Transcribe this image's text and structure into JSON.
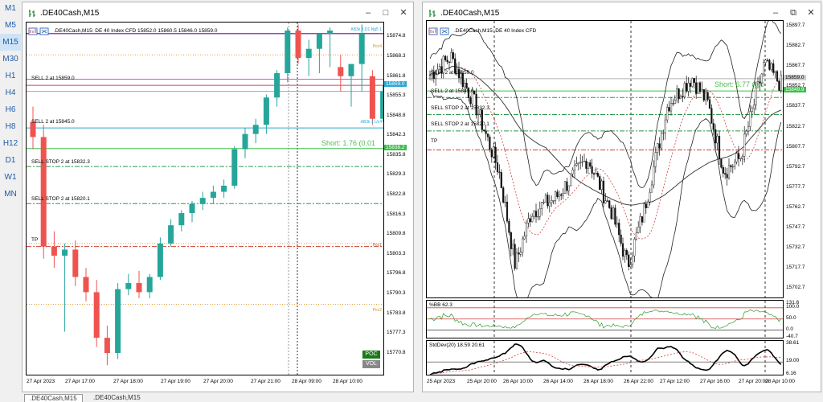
{
  "timeframes": [
    "M1",
    "M5",
    "M15",
    "M30",
    "H1",
    "H4",
    "H6",
    "H8",
    "H12",
    "D1",
    "W1",
    "MN"
  ],
  "active_timeframe": "M15",
  "window_left": {
    "title": ".DE40Cash,M15",
    "chart_label": ".DE40Cash,M15:  DE 40 Index CFD  15852.0 15860.5 15846.0 15859.0",
    "levels": [
      {
        "label": "SELL 2 at 15859.0",
        "price": 15859.0,
        "color": "#d04060",
        "style": "solid"
      },
      {
        "label": "SELL 2 at 15845.0",
        "price": 15845.0,
        "color": "#2aa7d4",
        "style": "solid"
      },
      {
        "label": "SELL STOP 2 at 15832.3",
        "price": 15832.3,
        "color": "#2b9a4b",
        "style": "dashdot"
      },
      {
        "label": "SELL STOP 2 at 15820.1",
        "price": 15820.1,
        "color": "#2b9a4b",
        "style": "dashdot"
      },
      {
        "label": "TP",
        "price": 15806.0,
        "color": "#d04030",
        "style": "dashdot"
      }
    ],
    "short_label": "Short: 1.76  (0.01",
    "poc_labels": [
      "Poc4",
      "Poc1",
      "Poc2"
    ],
    "band_labels": [
      "AB3k 3.D1 Ng5 1",
      "AB3k 1.Uc4"
    ],
    "y_ticks": [
      "15874.8",
      "15868.3",
      "15861.8",
      "15855.3",
      "15848.8",
      "15842.3",
      "15835.8",
      "15829.3",
      "15822.8",
      "15816.3",
      "15809.8",
      "15803.3",
      "15796.8",
      "15790.3",
      "15783.8",
      "15777.3",
      "15770.8"
    ],
    "price_tags": [
      {
        "text": "15859.0",
        "price": 15859.0,
        "bg": "#2aa7d4"
      },
      {
        "text": "15838.2",
        "price": 15838.2,
        "bg": "#3bbf4a"
      }
    ],
    "x_ticks": [
      "27 Apr 2023",
      "27 Apr 17:00",
      "27 Apr 18:00",
      "27 Apr 19:00",
      "27 Apr 20:00",
      "27 Apr 21:00",
      "28 Apr 09:00",
      "28 Apr 10:00"
    ],
    "poc_button": "POC",
    "vol_button": "VOL",
    "chart_data": {
      "type": "candlestick",
      "title": ".DE40Cash,M15",
      "ylim": [
        15766,
        15877
      ],
      "candles": [
        {
          "o": 15847,
          "h": 15852,
          "l": 15838,
          "c": 15842
        },
        {
          "o": 15842,
          "h": 15846,
          "l": 15802,
          "c": 15806
        },
        {
          "o": 15806,
          "h": 15811,
          "l": 15799,
          "c": 15803
        },
        {
          "o": 15803,
          "h": 15807,
          "l": 15778,
          "c": 15805
        },
        {
          "o": 15805,
          "h": 15808,
          "l": 15793,
          "c": 15796
        },
        {
          "o": 15796,
          "h": 15799,
          "l": 15788,
          "c": 15791
        },
        {
          "o": 15791,
          "h": 15795,
          "l": 15773,
          "c": 15776
        },
        {
          "o": 15776,
          "h": 15780,
          "l": 15767,
          "c": 15771
        },
        {
          "o": 15771,
          "h": 15794,
          "l": 15769,
          "c": 15792
        },
        {
          "o": 15792,
          "h": 15797,
          "l": 15790,
          "c": 15794
        },
        {
          "o": 15794,
          "h": 15798,
          "l": 15789,
          "c": 15791
        },
        {
          "o": 15791,
          "h": 15797,
          "l": 15789,
          "c": 15796
        },
        {
          "o": 15796,
          "h": 15809,
          "l": 15795,
          "c": 15807
        },
        {
          "o": 15807,
          "h": 15815,
          "l": 15806,
          "c": 15813
        },
        {
          "o": 15813,
          "h": 15818,
          "l": 15811,
          "c": 15817
        },
        {
          "o": 15817,
          "h": 15821,
          "l": 15814,
          "c": 15820
        },
        {
          "o": 15820,
          "h": 15824,
          "l": 15818,
          "c": 15822
        },
        {
          "o": 15822,
          "h": 15826,
          "l": 15820,
          "c": 15824
        },
        {
          "o": 15824,
          "h": 15828,
          "l": 15822,
          "c": 15826
        },
        {
          "o": 15826,
          "h": 15839,
          "l": 15825,
          "c": 15838
        },
        {
          "o": 15838,
          "h": 15845,
          "l": 15835,
          "c": 15843
        },
        {
          "o": 15843,
          "h": 15848,
          "l": 15840,
          "c": 15846
        },
        {
          "o": 15846,
          "h": 15856,
          "l": 15843,
          "c": 15855
        },
        {
          "o": 15855,
          "h": 15864,
          "l": 15852,
          "c": 15863
        },
        {
          "o": 15863,
          "h": 15878,
          "l": 15860,
          "c": 15877
        },
        {
          "o": 15877,
          "h": 15879,
          "l": 15866,
          "c": 15868
        },
        {
          "o": 15868,
          "h": 15874,
          "l": 15862,
          "c": 15871
        },
        {
          "o": 15871,
          "h": 15876,
          "l": 15863,
          "c": 15876
        },
        {
          "o": 15876,
          "h": 15878,
          "l": 15865,
          "c": 15877
        },
        {
          "o": 15865,
          "h": 15869,
          "l": 15857,
          "c": 15862
        },
        {
          "o": 15862,
          "h": 15866,
          "l": 15852,
          "c": 15866
        },
        {
          "o": 15866,
          "h": 15879,
          "l": 15857,
          "c": 15876
        },
        {
          "o": 15862,
          "h": 15864,
          "l": 15846,
          "c": 15848
        },
        {
          "o": 15848,
          "h": 15859,
          "l": 15847,
          "c": 15857
        }
      ]
    }
  },
  "window_right": {
    "title": ".DE40Cash,M15",
    "chart_label": ".DE40Cash,M15:  DE 40 Index CFD",
    "levels": [
      {
        "label": "SELL 2 at 15859.0"
      },
      {
        "label": "SELL 2 at 15845.0"
      },
      {
        "label": "SELL STOP 2 at 15832.3"
      },
      {
        "label": "SELL STOP 2 at 15820.1"
      },
      {
        "label": "TP"
      }
    ],
    "short_label": "Short: 6.77  (0.0",
    "y_ticks": [
      "15897.7",
      "15882.7",
      "15867.7",
      "15852.7",
      "15837.7",
      "15822.7",
      "15807.7",
      "15792.7",
      "15777.7",
      "15762.7",
      "15747.7",
      "15732.7",
      "15717.7",
      "15702.7"
    ],
    "price_tags": [
      {
        "text": "15859.0",
        "bg": "#cfcfcf"
      },
      {
        "text": "15849.9",
        "bg": "#3bbf4a"
      }
    ],
    "x_ticks": [
      "25 Apr 2023",
      "25 Apr 20:00",
      "26 Apr 10:00",
      "26 Apr 14:00",
      "26 Apr 18:00",
      "26 Apr 22:00",
      "27 Apr 12:00",
      "27 Apr 16:00",
      "27 Apr 20:00",
      "28 Apr 10:00"
    ],
    "indicator1_label": "%BB 62.3",
    "indicator1_ticks": [
      "131.6",
      "100.0",
      "50.0",
      "0.0",
      "-40.7"
    ],
    "indicator2_label": "StdDev(20) 18.59 20.61",
    "indicator2_ticks": [
      "38.61",
      "19.00",
      "6.16"
    ]
  },
  "tabs": [
    ".DE40Cash,M15",
    ".DE40Cash,M15"
  ],
  "colors": {
    "bull": "#26a69a",
    "bear": "#ef5350",
    "accent": "#1e5aa8"
  }
}
